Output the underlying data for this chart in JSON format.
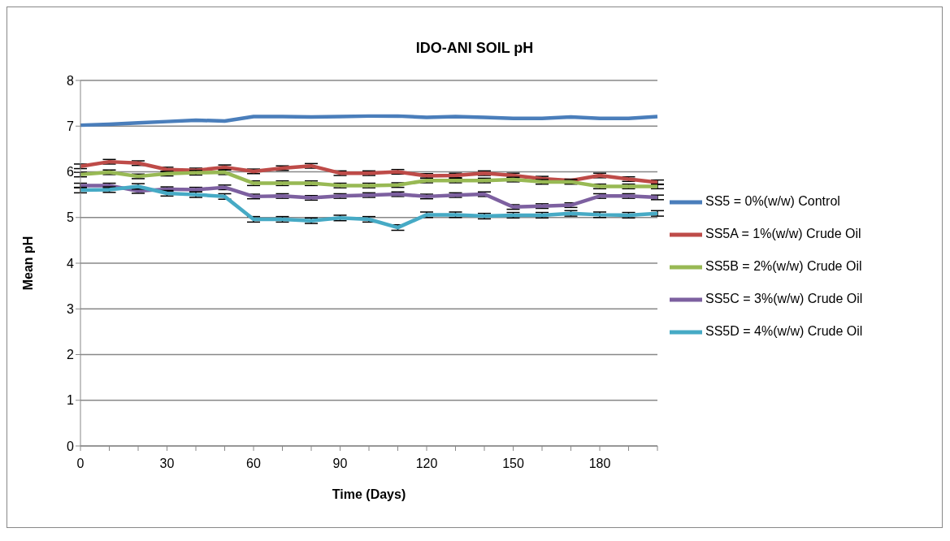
{
  "chart_data": {
    "type": "line",
    "title": "IDO-ANI SOIL pH",
    "xlabel": "Time (Days)",
    "ylabel": "Mean pH",
    "categories": [
      "0",
      null,
      null,
      "30",
      null,
      null,
      "60",
      null,
      null,
      "90",
      null,
      null,
      "120",
      null,
      null,
      "150",
      null,
      null,
      "180",
      null,
      null
    ],
    "series": [
      {
        "name": "SS5 = 0%(w/w) Control",
        "color": "#4a7ebb",
        "values": [
          7.02,
          7.04,
          7.07,
          7.1,
          7.13,
          7.11,
          7.21,
          7.21,
          7.2,
          7.21,
          7.22,
          7.22,
          7.19,
          7.21,
          7.19,
          7.17,
          7.17,
          7.2,
          7.17,
          7.17,
          7.21
        ]
      },
      {
        "name": "SS5A = 1%(w/w) Crude Oil",
        "color": "#be4b48",
        "values": [
          6.12,
          6.22,
          6.19,
          6.05,
          6.03,
          6.1,
          6.01,
          6.08,
          6.13,
          5.97,
          5.97,
          6.0,
          5.91,
          5.92,
          5.97,
          5.92,
          5.85,
          5.81,
          5.92,
          5.84,
          5.77
        ],
        "errors": [
          0.05,
          0.05,
          0.05,
          0.05,
          0.05,
          0.05,
          0.05,
          0.05,
          0.05,
          0.05,
          0.05,
          0.05,
          0.05,
          0.05,
          0.05,
          0.05,
          0.05,
          0.03,
          0.05,
          0.05,
          0.05
        ]
      },
      {
        "name": "SS5B = 2%(w/w) Crude Oil",
        "color": "#98b954",
        "values": [
          5.94,
          5.99,
          5.9,
          5.96,
          5.98,
          5.99,
          5.75,
          5.75,
          5.75,
          5.7,
          5.7,
          5.71,
          5.81,
          5.81,
          5.81,
          5.83,
          5.78,
          5.78,
          5.68,
          5.68,
          5.68
        ],
        "errors": [
          0.05,
          0.05,
          0.05,
          0.05,
          0.05,
          0.05,
          0.05,
          0.05,
          0.05,
          0.05,
          0.05,
          0.05,
          0.05,
          0.05,
          0.05,
          0.05,
          0.05,
          0.05,
          0.05,
          0.05,
          0.05
        ]
      },
      {
        "name": "SS5C = 3%(w/w) Crude Oil",
        "color": "#7d60a0",
        "values": [
          5.7,
          5.7,
          5.58,
          5.62,
          5.61,
          5.66,
          5.46,
          5.47,
          5.43,
          5.47,
          5.49,
          5.51,
          5.46,
          5.49,
          5.51,
          5.23,
          5.25,
          5.27,
          5.47,
          5.47,
          5.44
        ],
        "errors": [
          0.05,
          0.05,
          0.05,
          0.05,
          0.05,
          0.05,
          0.05,
          0.05,
          0.05,
          0.05,
          0.05,
          0.05,
          0.05,
          0.05,
          0.05,
          0.05,
          0.05,
          0.05,
          0.05,
          0.05,
          0.05
        ]
      },
      {
        "name": "SS5D = 4%(w/w) Crude Oil",
        "color": "#46aac5",
        "values": [
          5.6,
          5.61,
          5.68,
          5.53,
          5.5,
          5.46,
          4.96,
          4.96,
          4.93,
          4.99,
          4.96,
          4.78,
          5.06,
          5.06,
          5.03,
          5.05,
          5.05,
          5.09,
          5.06,
          5.05,
          5.09
        ],
        "errors": [
          0.06,
          0.06,
          0.06,
          0.06,
          0.06,
          0.06,
          0.06,
          0.06,
          0.06,
          0.06,
          0.06,
          0.06,
          0.06,
          0.06,
          0.06,
          0.06,
          0.06,
          0.06,
          0.06,
          0.06,
          0.06
        ]
      }
    ],
    "ylim": [
      0,
      8
    ],
    "yticks": [
      0,
      1,
      2,
      3,
      4,
      5,
      6,
      7,
      8
    ],
    "grid": "y",
    "legend": "right",
    "marker": "none",
    "line_style": "solid"
  }
}
